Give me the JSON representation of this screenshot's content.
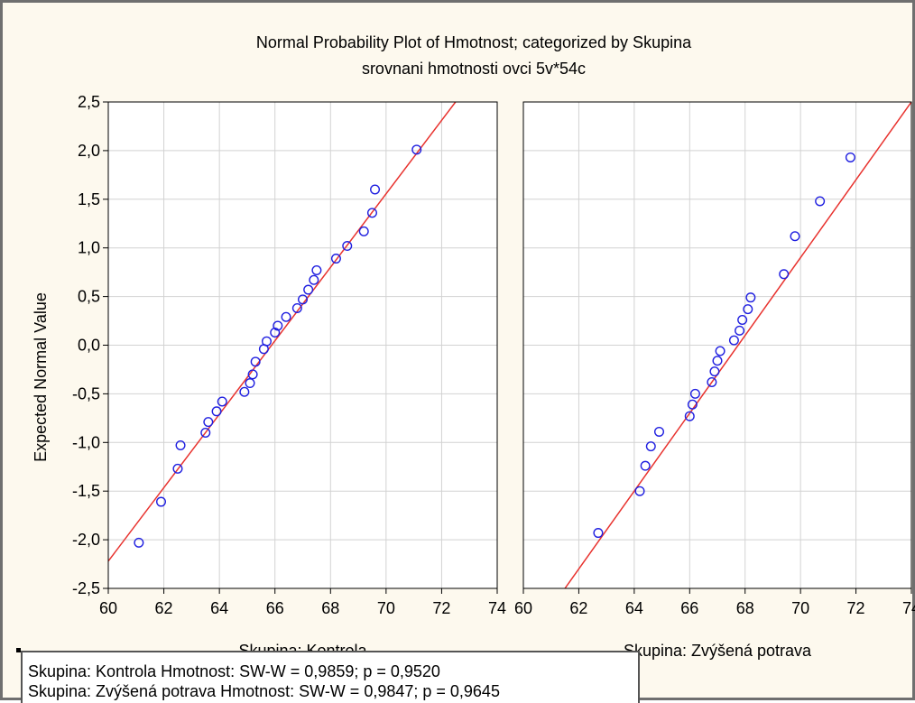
{
  "chart_data": {
    "type": "scatter",
    "title": "Normal Probability Plot of Hmotnost; categorized by Skupina",
    "subtitle": "srovnani hmotnosti ovci 5v*54c",
    "ylabel": "Expected Normal Value",
    "ylim": [
      -2.5,
      2.5
    ],
    "xlim": [
      60,
      74
    ],
    "xticks": [
      "60",
      "62",
      "64",
      "66",
      "68",
      "70",
      "72",
      "74"
    ],
    "yticks": [
      "-2,5",
      "-2,0",
      "-1,5",
      "-1,0",
      "-0,5",
      "0,0",
      "0,5",
      "1,0",
      "1,5",
      "2,0",
      "2,5"
    ],
    "grid": true,
    "point_color": "#1f1fe0",
    "line_color": "#e8322e",
    "panels": [
      {
        "name": "Kontrola",
        "xlabel": "Skupina: Kontrola",
        "fit_line": {
          "x": [
            60,
            72.5
          ],
          "y": [
            -2.22,
            2.5
          ]
        },
        "points": [
          {
            "x": 61.1,
            "y": -2.03
          },
          {
            "x": 61.9,
            "y": -1.61
          },
          {
            "x": 62.5,
            "y": -1.27
          },
          {
            "x": 62.6,
            "y": -1.03
          },
          {
            "x": 63.5,
            "y": -0.9
          },
          {
            "x": 63.6,
            "y": -0.79
          },
          {
            "x": 63.9,
            "y": -0.68
          },
          {
            "x": 64.1,
            "y": -0.58
          },
          {
            "x": 64.9,
            "y": -0.48
          },
          {
            "x": 65.1,
            "y": -0.39
          },
          {
            "x": 65.2,
            "y": -0.3
          },
          {
            "x": 65.3,
            "y": -0.17
          },
          {
            "x": 65.6,
            "y": -0.04
          },
          {
            "x": 65.7,
            "y": 0.04
          },
          {
            "x": 66.0,
            "y": 0.13
          },
          {
            "x": 66.1,
            "y": 0.2
          },
          {
            "x": 66.4,
            "y": 0.29
          },
          {
            "x": 66.8,
            "y": 0.38
          },
          {
            "x": 67.0,
            "y": 0.47
          },
          {
            "x": 67.2,
            "y": 0.57
          },
          {
            "x": 67.4,
            "y": 0.67
          },
          {
            "x": 67.5,
            "y": 0.77
          },
          {
            "x": 68.2,
            "y": 0.89
          },
          {
            "x": 68.6,
            "y": 1.02
          },
          {
            "x": 69.2,
            "y": 1.17
          },
          {
            "x": 69.5,
            "y": 1.36
          },
          {
            "x": 69.6,
            "y": 1.6
          },
          {
            "x": 71.1,
            "y": 2.01
          }
        ]
      },
      {
        "name": "Zvýšená potrava",
        "xlabel": "Skupina: Zvýšená potrava",
        "fit_line": {
          "x": [
            61.5,
            74
          ],
          "y": [
            -2.5,
            2.5
          ]
        },
        "points": [
          {
            "x": 62.7,
            "y": -1.93
          },
          {
            "x": 64.2,
            "y": -1.5
          },
          {
            "x": 64.4,
            "y": -1.24
          },
          {
            "x": 64.6,
            "y": -1.04
          },
          {
            "x": 64.9,
            "y": -0.89
          },
          {
            "x": 66.0,
            "y": -0.73
          },
          {
            "x": 66.1,
            "y": -0.61
          },
          {
            "x": 66.2,
            "y": -0.5
          },
          {
            "x": 66.8,
            "y": -0.38
          },
          {
            "x": 66.9,
            "y": -0.27
          },
          {
            "x": 67.0,
            "y": -0.16
          },
          {
            "x": 67.1,
            "y": -0.06
          },
          {
            "x": 67.6,
            "y": 0.05
          },
          {
            "x": 67.8,
            "y": 0.15
          },
          {
            "x": 67.9,
            "y": 0.26
          },
          {
            "x": 68.1,
            "y": 0.37
          },
          {
            "x": 68.2,
            "y": 0.49
          },
          {
            "x": 69.4,
            "y": 0.73
          },
          {
            "x": 69.8,
            "y": 1.12
          },
          {
            "x": 70.7,
            "y": 1.48
          },
          {
            "x": 71.8,
            "y": 1.93
          }
        ]
      }
    ]
  },
  "stats": [
    "Skupina: Kontrola  Hmotnost:   SW-W = 0,9859; p = 0,9520",
    "Skupina: Zvýšená potrava  Hmotnost:   SW-W = 0,9847; p = 0,9645"
  ]
}
